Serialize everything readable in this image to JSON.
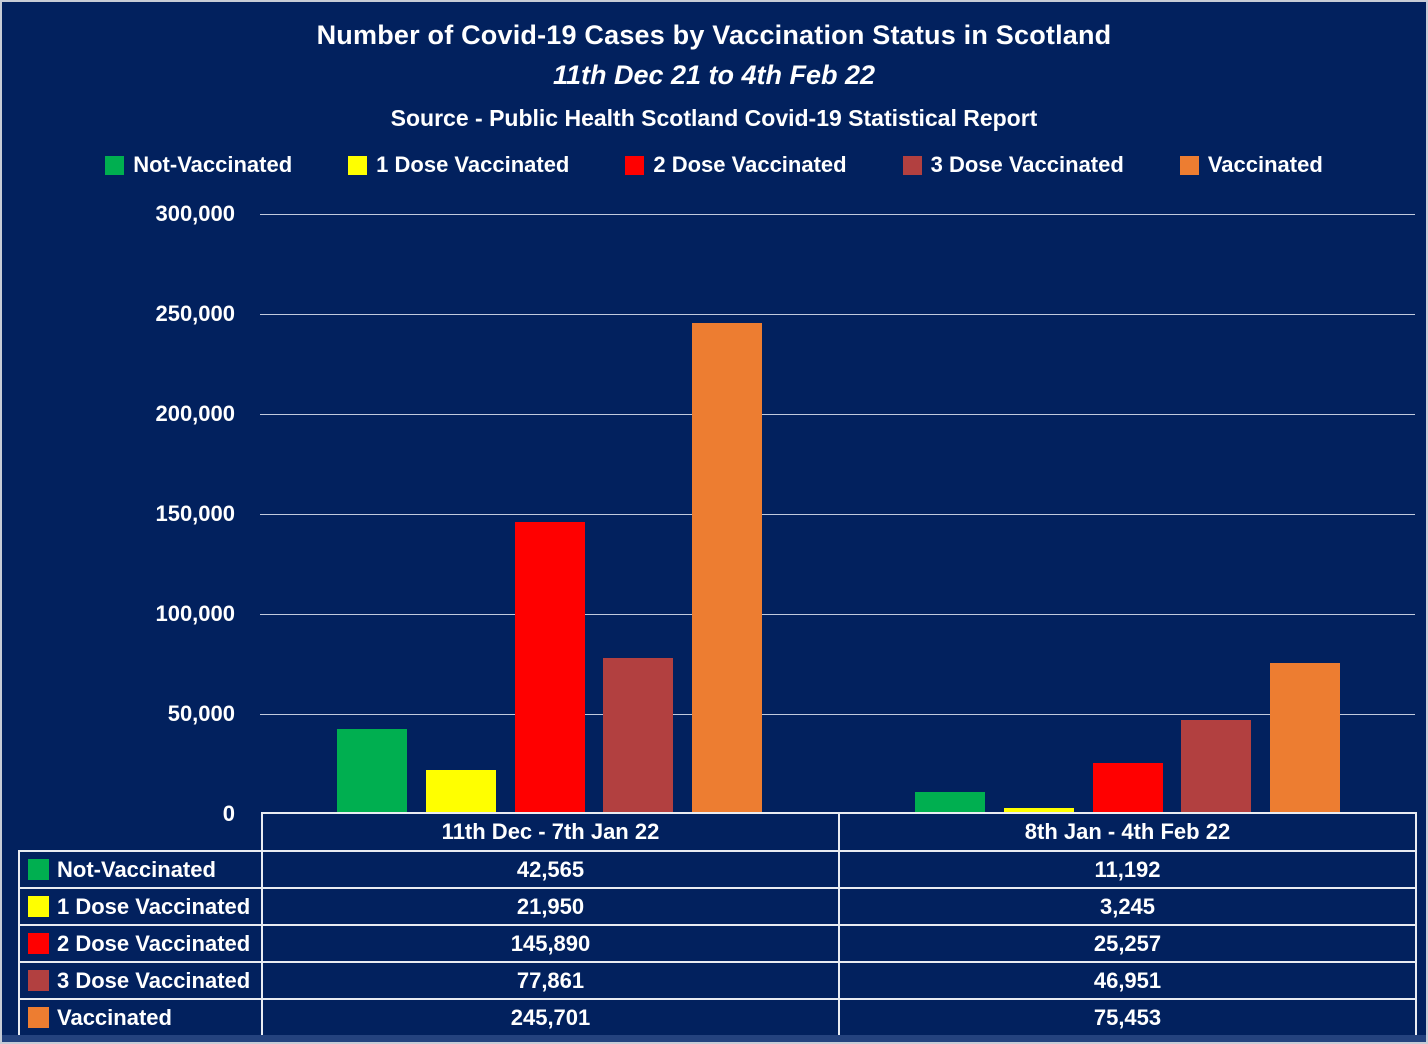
{
  "chart_data": {
    "type": "bar",
    "title": "Number of Covid-19 Cases by Vaccination Status in Scotland",
    "subtitle": "11th Dec 21 to 4th Feb 22",
    "source": "Source - Public Health Scotland Covid-19 Statistical Report",
    "categories": [
      "11th Dec - 7th Jan 22",
      "8th Jan - 4th Feb 22"
    ],
    "series": [
      {
        "name": "Not-Vaccinated",
        "color": "#00AF50",
        "values": [
          42565,
          11192
        ]
      },
      {
        "name": "1 Dose Vaccinated",
        "color": "#FFFF00",
        "values": [
          21950,
          3245
        ]
      },
      {
        "name": "2 Dose Vaccinated",
        "color": "#FF0000",
        "values": [
          145890,
          25257
        ]
      },
      {
        "name": "3 Dose Vaccinated",
        "color": "#B24040",
        "values": [
          77861,
          46951
        ]
      },
      {
        "name": "Vaccinated",
        "color": "#ED7D31",
        "values": [
          245701,
          75453
        ]
      }
    ],
    "ylim": [
      0,
      300000
    ],
    "ytick_step": 50000,
    "ytick_labels": [
      "300,000",
      "250,000",
      "200,000",
      "150,000",
      "100,000",
      "50,000",
      "0"
    ],
    "grid": true,
    "legend_position": "top",
    "background_color": "#02215E"
  },
  "table": {
    "rows": [
      {
        "label": "Not-Vaccinated",
        "values": [
          "42,565",
          "11,192"
        ]
      },
      {
        "label": "1 Dose Vaccinated",
        "values": [
          "21,950",
          "3,245"
        ]
      },
      {
        "label": "2 Dose Vaccinated",
        "values": [
          "145,890",
          "25,257"
        ]
      },
      {
        "label": "3 Dose Vaccinated",
        "values": [
          "77,861",
          "46,951"
        ]
      },
      {
        "label": "Vaccinated",
        "values": [
          "245,701",
          "75,453"
        ]
      }
    ]
  },
  "colors": {
    "background": "#02215E",
    "gridline": "#D6DDEB",
    "table_border": "#E9ECF2",
    "outer_border": "#C7CCD6",
    "bottom_strip": "#24427E",
    "text": "#FFFFFF"
  }
}
